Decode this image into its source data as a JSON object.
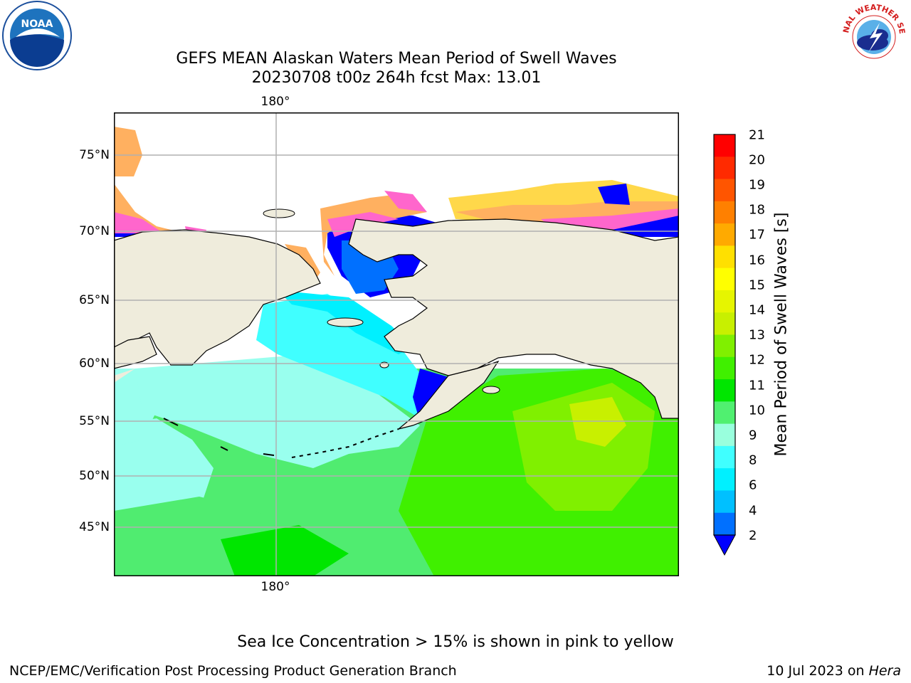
{
  "title": {
    "line1": "GEFS MEAN Alaskan Waters Mean Period of Swell Waves",
    "line2": "20230708 t00z 264h fcst   Max: 13.01"
  },
  "map": {
    "lat_labels": [
      "75°N",
      "70°N",
      "65°N",
      "60°N",
      "55°N",
      "50°N",
      "45°N"
    ],
    "lon_label_top": "180°",
    "lon_label_bottom": "180°",
    "colors": {
      "land": "#efecdc",
      "grid": "#b0b0b0",
      "coast": "#000000",
      "ice_pink": "#ff66cc",
      "ice_orange": "#ffb060",
      "ice_yellow": "#ffd84a"
    }
  },
  "colorbar": {
    "label": "Mean Period of Swell Waves [s]",
    "ticks": [
      "21",
      "20",
      "19",
      "18",
      "17",
      "16",
      "15",
      "14",
      "13",
      "12",
      "11",
      "10",
      "9",
      "8",
      "6",
      "4",
      "2"
    ],
    "colors": [
      "#ff0000",
      "#ff2a00",
      "#ff5500",
      "#ff8000",
      "#ffaa00",
      "#ffe000",
      "#ffff00",
      "#e6f500",
      "#c8f000",
      "#80f000",
      "#40f000",
      "#00e600",
      "#50f070",
      "#99ffdd",
      "#40ffff",
      "#00f0ff",
      "#00c0ff",
      "#0070ff"
    ],
    "extend_color": "#0000ff"
  },
  "caption": "Sea Ice Concentration > 15% is shown in pink to yellow",
  "footer": {
    "left": "NCEP/EMC/Verification Post Processing Product Generation Branch",
    "right_prefix": "10 Jul 2023 on ",
    "right_machine": "Hera"
  },
  "logos": {
    "noaa": "NOAA",
    "nws": "NATIONAL WEATHER SERVICE"
  }
}
